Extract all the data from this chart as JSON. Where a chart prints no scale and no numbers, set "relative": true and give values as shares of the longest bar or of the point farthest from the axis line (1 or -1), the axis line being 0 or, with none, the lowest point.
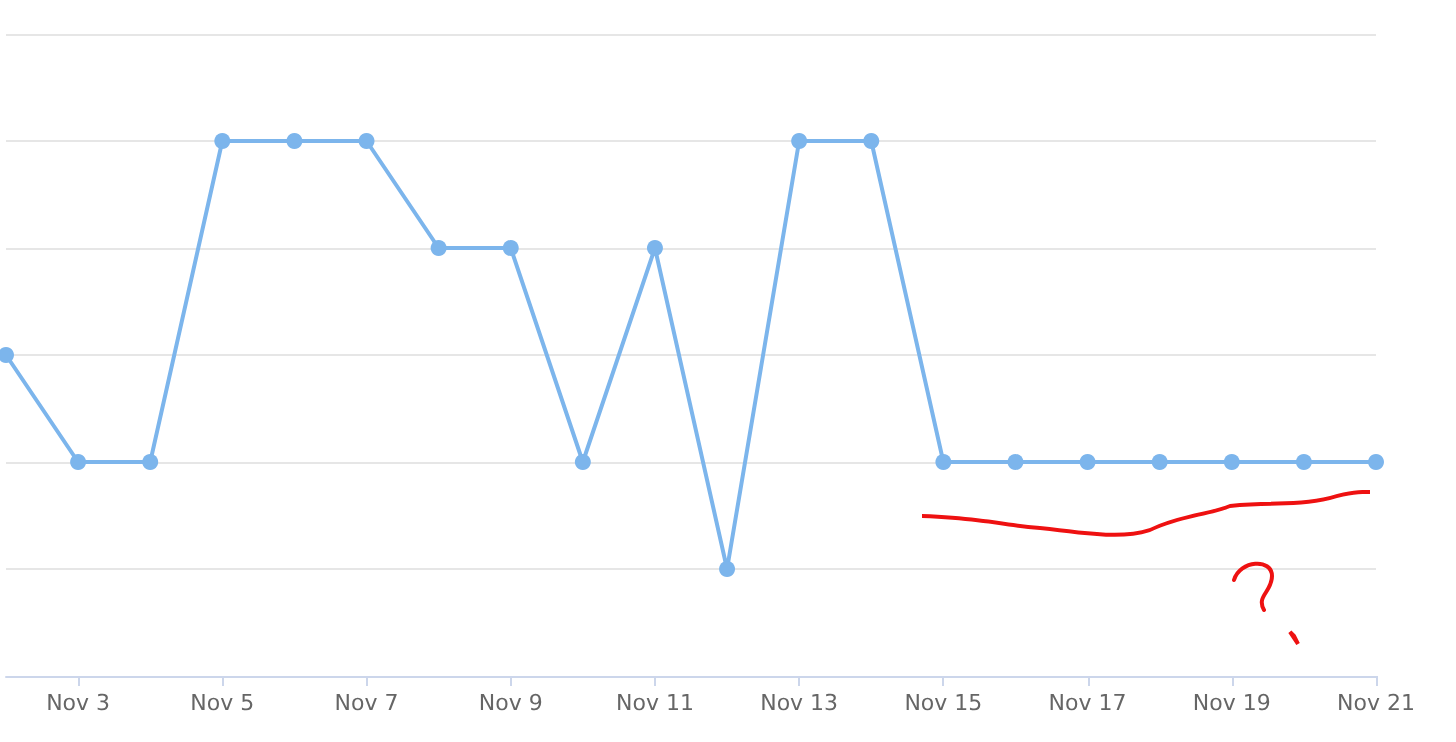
{
  "chart_data": {
    "type": "line",
    "relative": true,
    "categories": [
      null,
      "Nov 3",
      null,
      "Nov 5",
      null,
      "Nov 7",
      null,
      "Nov 9",
      null,
      "Nov 11",
      null,
      "Nov 13",
      null,
      "Nov 15",
      null,
      "Nov 17",
      null,
      "Nov 19",
      null,
      "Nov 21"
    ],
    "series": [
      {
        "color": "#7cb5ec",
        "values": [
          0.6,
          0.4,
          0.4,
          1,
          1,
          1,
          0.8,
          0.8,
          0.4,
          0.8,
          0.2,
          1,
          1,
          0.4,
          0.4,
          0.4,
          0.4,
          0.4,
          0.4,
          0.4
        ]
      }
    ],
    "grid": "y",
    "marker": "circle"
  }
}
